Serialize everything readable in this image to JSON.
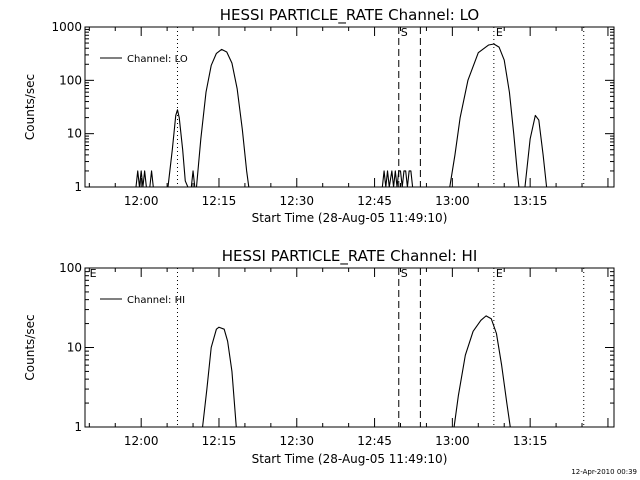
{
  "stamp": "12-Apr-2010 00:39",
  "chart_data": [
    {
      "type": "line",
      "title": "HESSI PARTICLE_RATE Channel: LO",
      "xlabel": "Start Time (28-Aug-05 11:49:10)",
      "ylabel": "Counts/sec",
      "yscale": "log",
      "ylim": [
        1,
        1000
      ],
      "yticks": [
        "1",
        "10",
        "100",
        "1000"
      ],
      "xlim": [
        "11:49:10",
        "13:31:10"
      ],
      "xticks": [
        "12:00",
        "12:15",
        "12:30",
        "12:45",
        "13:00",
        "13:15"
      ],
      "grid": false,
      "legend": {
        "position": "top-left",
        "entries": [
          "Channel: LO"
        ]
      },
      "series": [
        {
          "name": "Channel: LO",
          "points": [
            [
              "11:59:00",
              1
            ],
            [
              "11:59:20",
              2
            ],
            [
              "11:59:40",
              1
            ],
            [
              "12:00:00",
              2
            ],
            [
              "12:00:20",
              1
            ],
            [
              "12:00:40",
              2
            ],
            [
              "12:01:00",
              1
            ],
            [
              "12:01:40",
              1
            ],
            [
              "12:02:00",
              2
            ],
            [
              "12:02:20",
              1
            ],
            [
              "12:05:10",
              1
            ],
            [
              "12:06:00",
              5
            ],
            [
              "12:06:40",
              22
            ],
            [
              "12:07:00",
              28
            ],
            [
              "12:07:20",
              20
            ],
            [
              "12:08:00",
              5
            ],
            [
              "12:08:30",
              1.3
            ],
            [
              "12:09:00",
              1
            ],
            [
              "12:09:40",
              1
            ],
            [
              "12:10:00",
              2
            ],
            [
              "12:10:20",
              1
            ],
            [
              "12:10:40",
              1
            ],
            [
              "12:11:30",
              8
            ],
            [
              "12:12:30",
              60
            ],
            [
              "12:13:30",
              190
            ],
            [
              "12:14:30",
              320
            ],
            [
              "12:15:30",
              380
            ],
            [
              "12:16:30",
              340
            ],
            [
              "12:17:30",
              210
            ],
            [
              "12:18:30",
              70
            ],
            [
              "12:19:30",
              12
            ],
            [
              "12:20:20",
              2
            ],
            [
              "12:20:45",
              1
            ],
            [
              "12:46:30",
              1
            ],
            [
              "12:46:50",
              2
            ],
            [
              "12:47:10",
              1
            ],
            [
              "12:47:30",
              2
            ],
            [
              "12:47:50",
              1
            ],
            [
              "12:48:20",
              2
            ],
            [
              "12:48:40",
              1
            ],
            [
              "12:49:00",
              2
            ],
            [
              "12:49:20",
              1
            ],
            [
              "12:49:40",
              2
            ],
            [
              "12:50:00",
              2
            ],
            [
              "12:50:20",
              1
            ],
            [
              "12:50:40",
              2
            ],
            [
              "12:51:00",
              2
            ],
            [
              "12:51:20",
              1
            ],
            [
              "12:51:40",
              2
            ],
            [
              "12:52:00",
              2
            ],
            [
              "12:52:20",
              1
            ],
            [
              "12:59:30",
              1
            ],
            [
              "13:00:30",
              4
            ],
            [
              "13:01:30",
              20
            ],
            [
              "13:03:00",
              100
            ],
            [
              "13:05:00",
              330
            ],
            [
              "13:07:00",
              460
            ],
            [
              "13:08:00",
              480
            ],
            [
              "13:09:00",
              420
            ],
            [
              "13:10:00",
              240
            ],
            [
              "13:11:00",
              60
            ],
            [
              "13:11:50",
              10
            ],
            [
              "13:12:30",
              2
            ],
            [
              "13:12:50",
              1
            ],
            [
              "13:14:00",
              1
            ],
            [
              "13:15:00",
              8
            ],
            [
              "13:16:00",
              22
            ],
            [
              "13:16:40",
              18
            ],
            [
              "13:17:30",
              4
            ],
            [
              "13:18:10",
              1
            ]
          ]
        }
      ],
      "annotations": [
        {
          "text": "S",
          "x": "12:49:40",
          "style": "dashed"
        },
        {
          "text": "",
          "x": "12:53:50",
          "style": "dashed"
        },
        {
          "text": "",
          "x": "12:07:00",
          "style": "dotted"
        },
        {
          "text": "E",
          "x": "13:08:00",
          "style": "dotted"
        },
        {
          "text": "",
          "x": "13:25:20",
          "style": "dotted"
        }
      ]
    },
    {
      "type": "line",
      "title": "HESSI PARTICLE_RATE Channel: HI",
      "xlabel": "Start Time (28-Aug-05 11:49:10)",
      "ylabel": "Counts/sec",
      "yscale": "log",
      "ylim": [
        1,
        100
      ],
      "yticks": [
        "1",
        "10",
        "100"
      ],
      "xlim": [
        "11:49:10",
        "13:31:10"
      ],
      "xticks": [
        "12:00",
        "12:15",
        "12:30",
        "12:45",
        "13:00",
        "13:15"
      ],
      "grid": false,
      "legend": {
        "position": "top-left",
        "entries": [
          "Channel: HI"
        ]
      },
      "series": [
        {
          "name": "Channel: HI",
          "points": [
            [
              "12:11:50",
              1
            ],
            [
              "12:12:40",
              3
            ],
            [
              "12:13:30",
              10
            ],
            [
              "12:14:30",
              17
            ],
            [
              "12:15:00",
              18
            ],
            [
              "12:16:00",
              17
            ],
            [
              "12:16:40",
              12
            ],
            [
              "12:17:30",
              5
            ],
            [
              "12:18:20",
              1
            ],
            [
              "13:00:20",
              1
            ],
            [
              "13:01:10",
              2.5
            ],
            [
              "13:02:30",
              8
            ],
            [
              "13:04:00",
              16
            ],
            [
              "13:05:30",
              22
            ],
            [
              "13:06:30",
              25
            ],
            [
              "13:07:30",
              23
            ],
            [
              "13:08:30",
              15
            ],
            [
              "13:09:30",
              6
            ],
            [
              "13:10:30",
              2
            ],
            [
              "13:11:10",
              1
            ]
          ]
        }
      ],
      "annotations": [
        {
          "text": "E",
          "x": "11:49:40",
          "style": "none"
        },
        {
          "text": "S",
          "x": "12:49:40",
          "style": "dashed"
        },
        {
          "text": "",
          "x": "12:53:50",
          "style": "dashed"
        },
        {
          "text": "",
          "x": "12:07:00",
          "style": "dotted"
        },
        {
          "text": "E",
          "x": "13:08:00",
          "style": "dotted"
        },
        {
          "text": "",
          "x": "13:25:20",
          "style": "dotted"
        }
      ]
    }
  ]
}
